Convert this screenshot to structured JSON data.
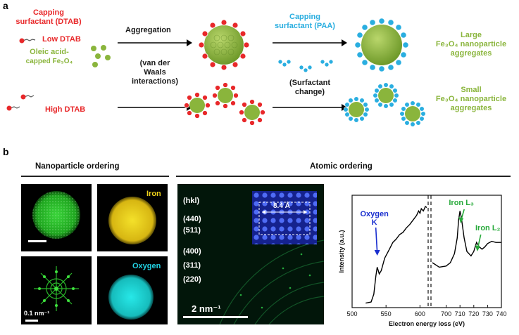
{
  "panel_a": {
    "letter": "a",
    "capping_dtab_line1": "Capping",
    "capping_dtab_line2": "surfactant (DTAB)",
    "low_dtab": "Low DTAB",
    "oleic_line1": "Oleic acid-",
    "oleic_line2": "capped Fe₃O₄",
    "high_dtab": "High DTAB",
    "aggregation": "Aggregation",
    "vdw_line1": "(van der",
    "vdw_line2": "Waals",
    "vdw_line3": "interactions)",
    "paa_line1": "Capping",
    "paa_line2": "surfactant (PAA)",
    "surf_change_line1": "(Surfactant",
    "surf_change_line2": "change)",
    "large_line1": "Large",
    "large_line2": "Fe₃O₄ nanoparticle",
    "large_line3": "aggregates",
    "small_line1": "Small",
    "small_line2": "Fe₃O₄ nanoparticle",
    "small_line3": "aggregates",
    "colors": {
      "red": "#e8282a",
      "green": "#8ab53c",
      "blue": "#2aaee0"
    }
  },
  "panel_b": {
    "letter": "b",
    "nanoparticle_ordering": "Nanoparticle ordering",
    "atomic_ordering": "Atomic ordering",
    "iron_label": "Iron",
    "oxygen_label": "Oxygen",
    "fft_scale": "0.1 nm⁻¹",
    "diffraction_scale": "2 nm⁻¹",
    "hkl": [
      "(hkl)",
      "(440)",
      "(511)",
      "(400)",
      "(311)",
      "(220)"
    ],
    "inset_distance": "8.4 Å"
  },
  "chart_data": {
    "type": "line",
    "xlabel": "Electron energy loss (eV)",
    "ylabel": "Intensity (a.u.)",
    "segments": [
      {
        "xlim": [
          500,
          610
        ],
        "ticks": [
          500,
          550,
          600
        ]
      },
      {
        "xlim": [
          690,
          740
        ],
        "ticks": [
          700,
          710,
          720,
          730,
          740
        ]
      }
    ],
    "annotations": [
      {
        "text": "Oxygen",
        "text2": "K",
        "x": 537,
        "color": "#1a2fcf"
      },
      {
        "text": "Iron L₃",
        "x": 710,
        "color": "#27a93a"
      },
      {
        "text": "Iron L₂",
        "x": 722,
        "color": "#27a93a"
      }
    ],
    "series_left": {
      "x": [
        520,
        528,
        532,
        535,
        537,
        540,
        543,
        548,
        555,
        560,
        565,
        570,
        575,
        580,
        585,
        590,
        595,
        598,
        600,
        602,
        605,
        608,
        610
      ],
      "y": [
        0.04,
        0.05,
        0.12,
        0.28,
        0.36,
        0.3,
        0.33,
        0.44,
        0.52,
        0.58,
        0.61,
        0.65,
        0.67,
        0.71,
        0.74,
        0.78,
        0.82,
        0.86,
        0.84,
        0.88,
        0.86,
        0.9,
        0.89
      ]
    },
    "series_right": {
      "x": [
        690,
        695,
        700,
        703,
        706,
        708,
        709,
        710,
        711,
        713,
        715,
        718,
        720,
        722,
        724,
        726,
        728,
        730,
        733,
        736,
        740
      ],
      "y": [
        0.4,
        0.36,
        0.37,
        0.4,
        0.48,
        0.62,
        0.78,
        0.86,
        0.8,
        0.62,
        0.5,
        0.46,
        0.5,
        0.58,
        0.54,
        0.52,
        0.54,
        0.57,
        0.59,
        0.58,
        0.58
      ]
    }
  }
}
